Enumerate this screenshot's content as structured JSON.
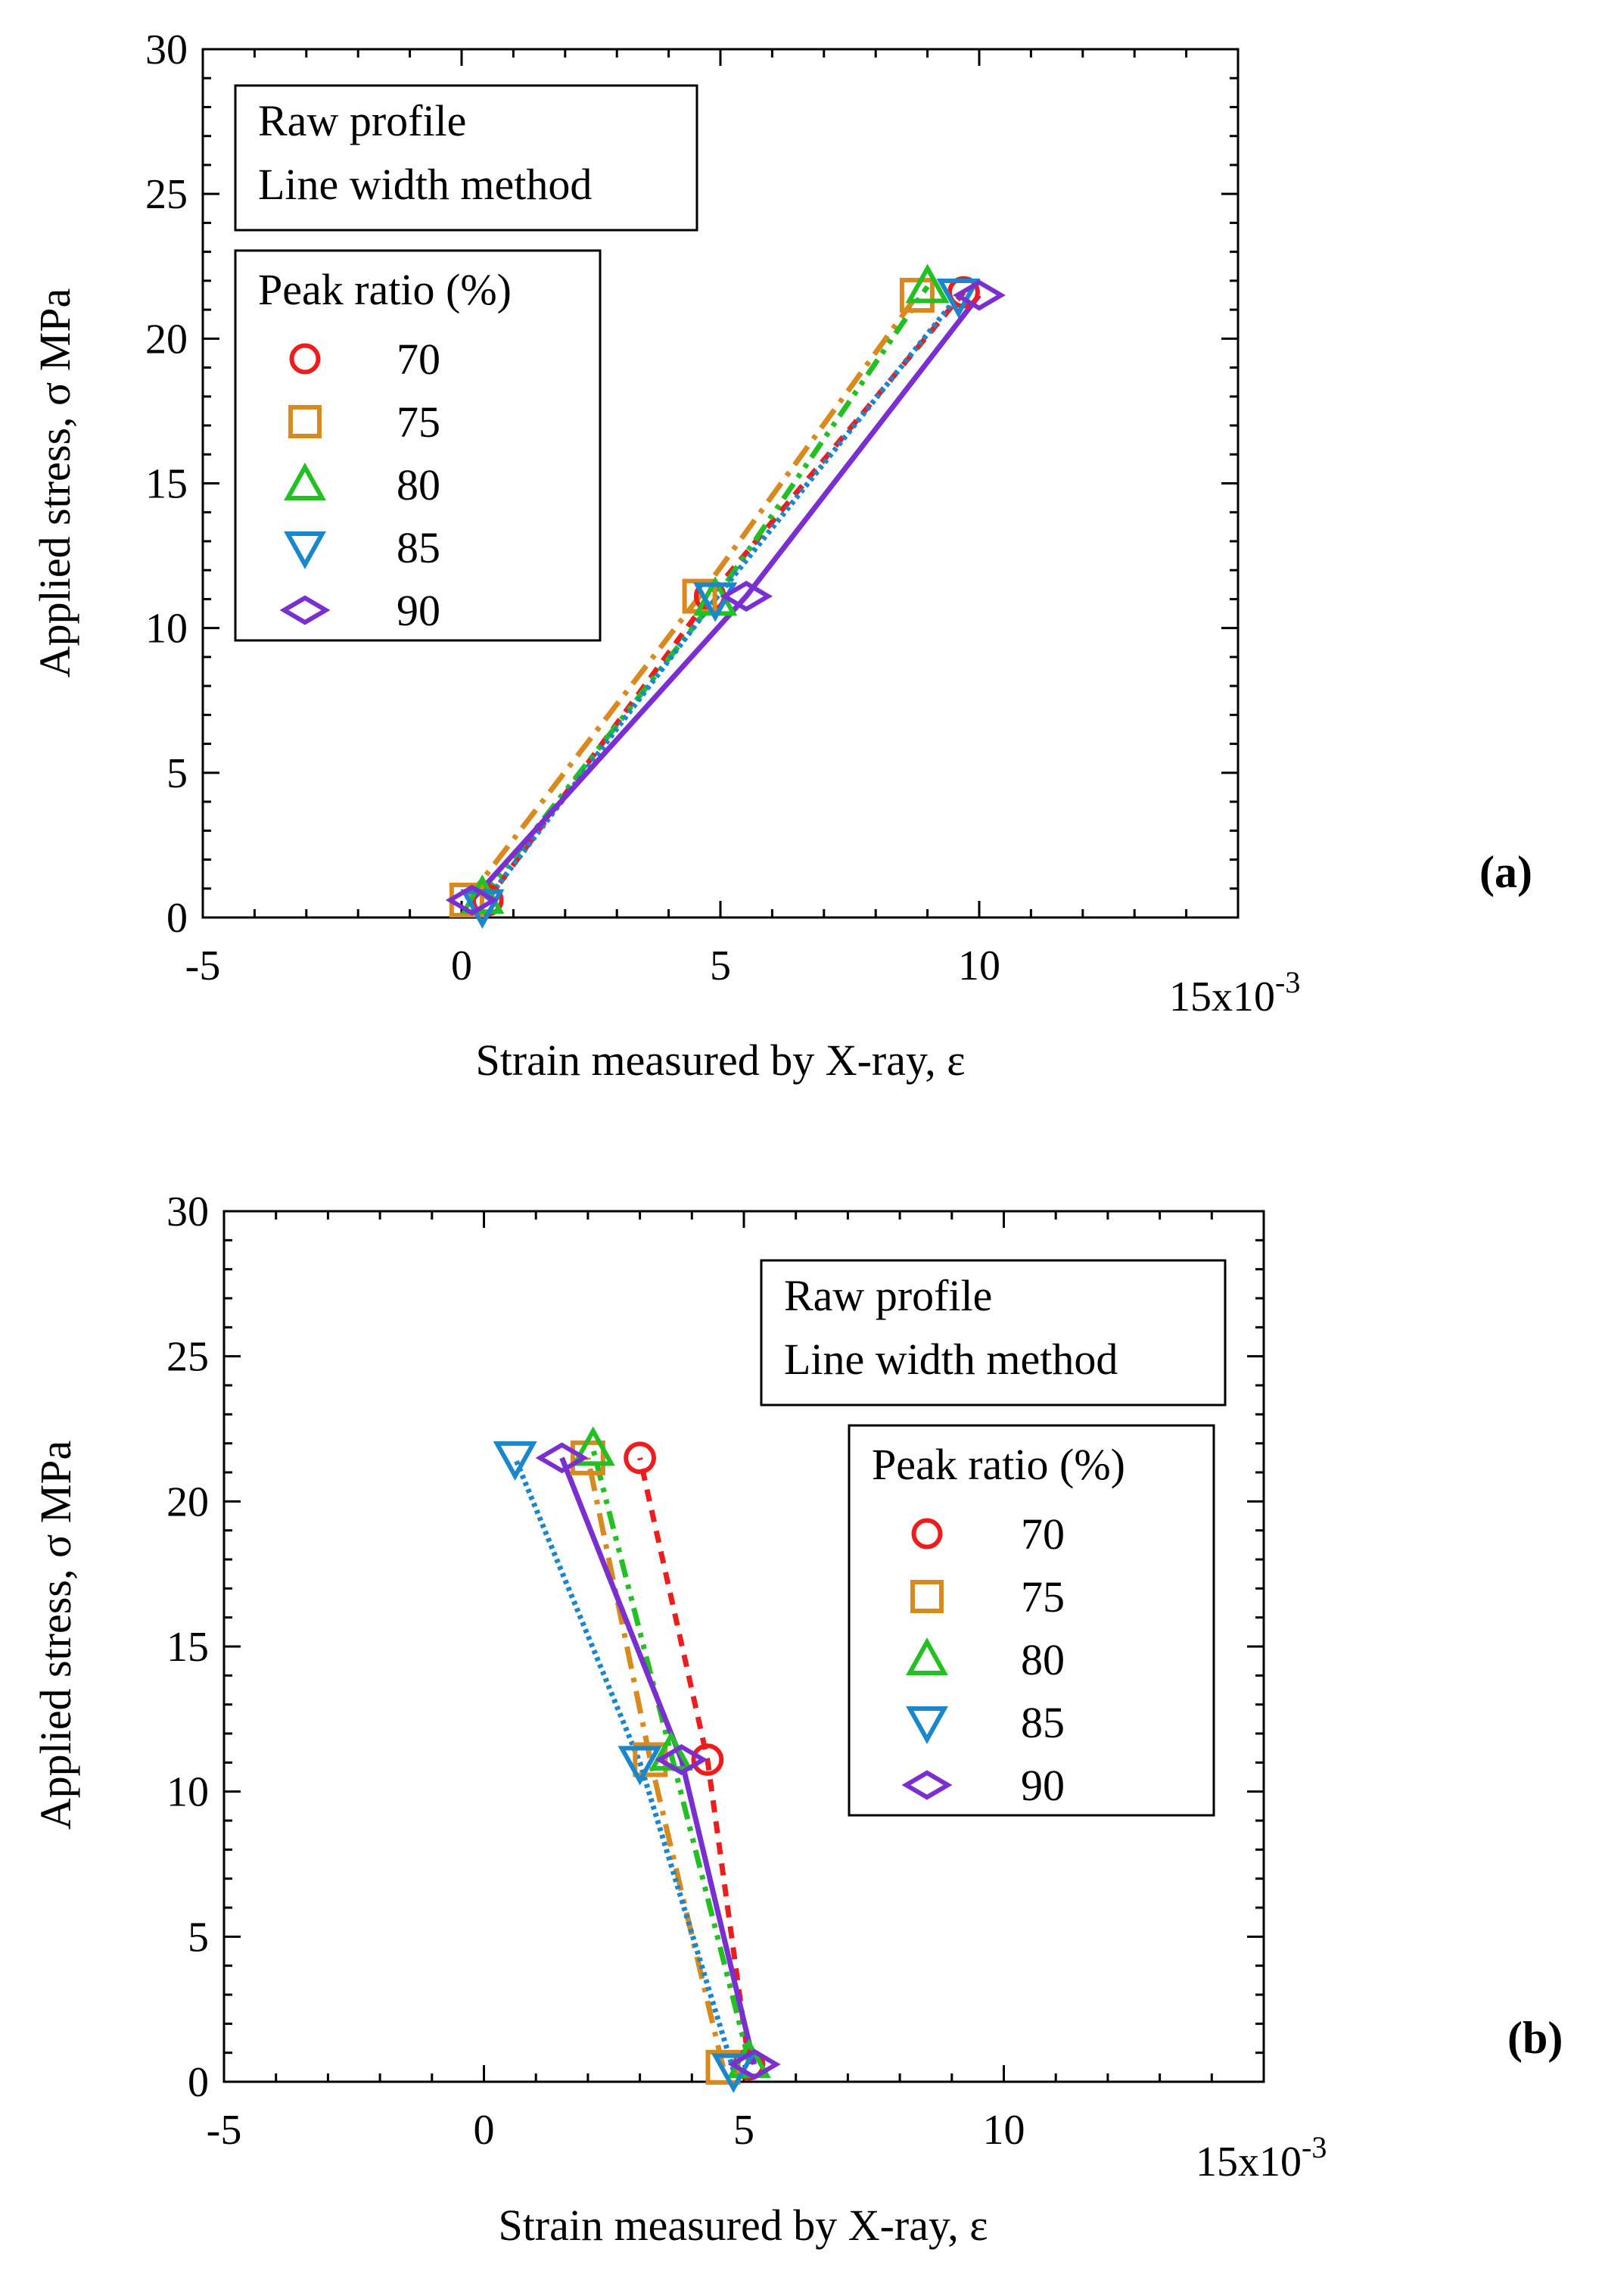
{
  "chart_data": [
    {
      "panel_label": "(a)",
      "type": "line",
      "xlabel": "Strain measured by X-ray, ε",
      "ylabel": "Applied stress, σ MPa",
      "x_multiplier_label": "15x10",
      "x_multiplier_exp": "-3",
      "xlim": [
        -5,
        15
      ],
      "ylim": [
        0,
        30
      ],
      "xticks": [
        -5,
        0,
        5,
        10
      ],
      "xtick_labels": [
        "-5",
        "0",
        "5",
        "10"
      ],
      "yticks": [
        0,
        5,
        10,
        15,
        20,
        25,
        30
      ],
      "ytick_labels": [
        "0",
        "5",
        "10",
        "15",
        "20",
        "25",
        "30"
      ],
      "info_box": [
        "Raw profile",
        "Line width method"
      ],
      "legend_title": "Peak ratio (%)",
      "legend_position": "top-left",
      "series": [
        {
          "name": "70",
          "marker": "circle",
          "color": "#ee1c1c",
          "dash": "dash",
          "points": [
            [
              0.5,
              0.6
            ],
            [
              4.8,
              11.1
            ],
            [
              9.7,
              21.6
            ]
          ]
        },
        {
          "name": "75",
          "marker": "square",
          "color": "#d98a1e",
          "dash": "dashdot",
          "points": [
            [
              0.1,
              0.6
            ],
            [
              4.6,
              11.1
            ],
            [
              8.8,
              21.5
            ]
          ]
        },
        {
          "name": "80",
          "marker": "triangle-up",
          "color": "#22c022",
          "dash": "dashdotdot",
          "points": [
            [
              0.4,
              0.7
            ],
            [
              4.9,
              11.0
            ],
            [
              9.0,
              21.8
            ]
          ]
        },
        {
          "name": "85",
          "marker": "triangle-down",
          "color": "#1a86cc",
          "dash": "dot",
          "points": [
            [
              0.4,
              0.4
            ],
            [
              4.9,
              11.0
            ],
            [
              9.6,
              21.5
            ]
          ]
        },
        {
          "name": "90",
          "marker": "diamond",
          "color": "#7b2fd0",
          "dash": "solid",
          "points": [
            [
              0.2,
              0.6
            ],
            [
              5.5,
              11.1
            ],
            [
              10.0,
              21.5
            ]
          ]
        }
      ]
    },
    {
      "panel_label": "(b)",
      "type": "line",
      "xlabel": "Strain measured by X-ray, ε",
      "ylabel": "Applied stress, σ MPa",
      "x_multiplier_label": "15x10",
      "x_multiplier_exp": "-3",
      "xlim": [
        -5,
        15
      ],
      "ylim": [
        0,
        30
      ],
      "xticks": [
        -5,
        0,
        5,
        10
      ],
      "xtick_labels": [
        "-5",
        "0",
        "5",
        "10"
      ],
      "yticks": [
        0,
        5,
        10,
        15,
        20,
        25,
        30
      ],
      "ytick_labels": [
        "0",
        "5",
        "10",
        "15",
        "20",
        "25",
        "30"
      ],
      "info_box": [
        "Raw profile",
        "Line width method"
      ],
      "legend_title": "Peak ratio (%)",
      "legend_position": "top-right",
      "series": [
        {
          "name": "70",
          "marker": "circle",
          "color": "#ee1c1c",
          "dash": "dash",
          "points": [
            [
              5.1,
              0.6
            ],
            [
              4.3,
              11.1
            ],
            [
              3.0,
              21.5
            ]
          ]
        },
        {
          "name": "75",
          "marker": "square",
          "color": "#d98a1e",
          "dash": "dashdot",
          "points": [
            [
              4.6,
              0.5
            ],
            [
              3.2,
              11.1
            ],
            [
              2.0,
              21.5
            ]
          ]
        },
        {
          "name": "80",
          "marker": "triangle-up",
          "color": "#22c022",
          "dash": "dashdotdot",
          "points": [
            [
              5.1,
              0.7
            ],
            [
              3.6,
              11.3
            ],
            [
              2.1,
              21.8
            ]
          ]
        },
        {
          "name": "85",
          "marker": "triangle-down",
          "color": "#1a86cc",
          "dash": "dot",
          "points": [
            [
              4.8,
              0.4
            ],
            [
              3.0,
              11.0
            ],
            [
              0.6,
              21.5
            ]
          ]
        },
        {
          "name": "90",
          "marker": "diamond",
          "color": "#7b2fd0",
          "dash": "solid",
          "points": [
            [
              5.2,
              0.6
            ],
            [
              3.8,
              11.1
            ],
            [
              1.5,
              21.5
            ]
          ]
        }
      ]
    }
  ]
}
